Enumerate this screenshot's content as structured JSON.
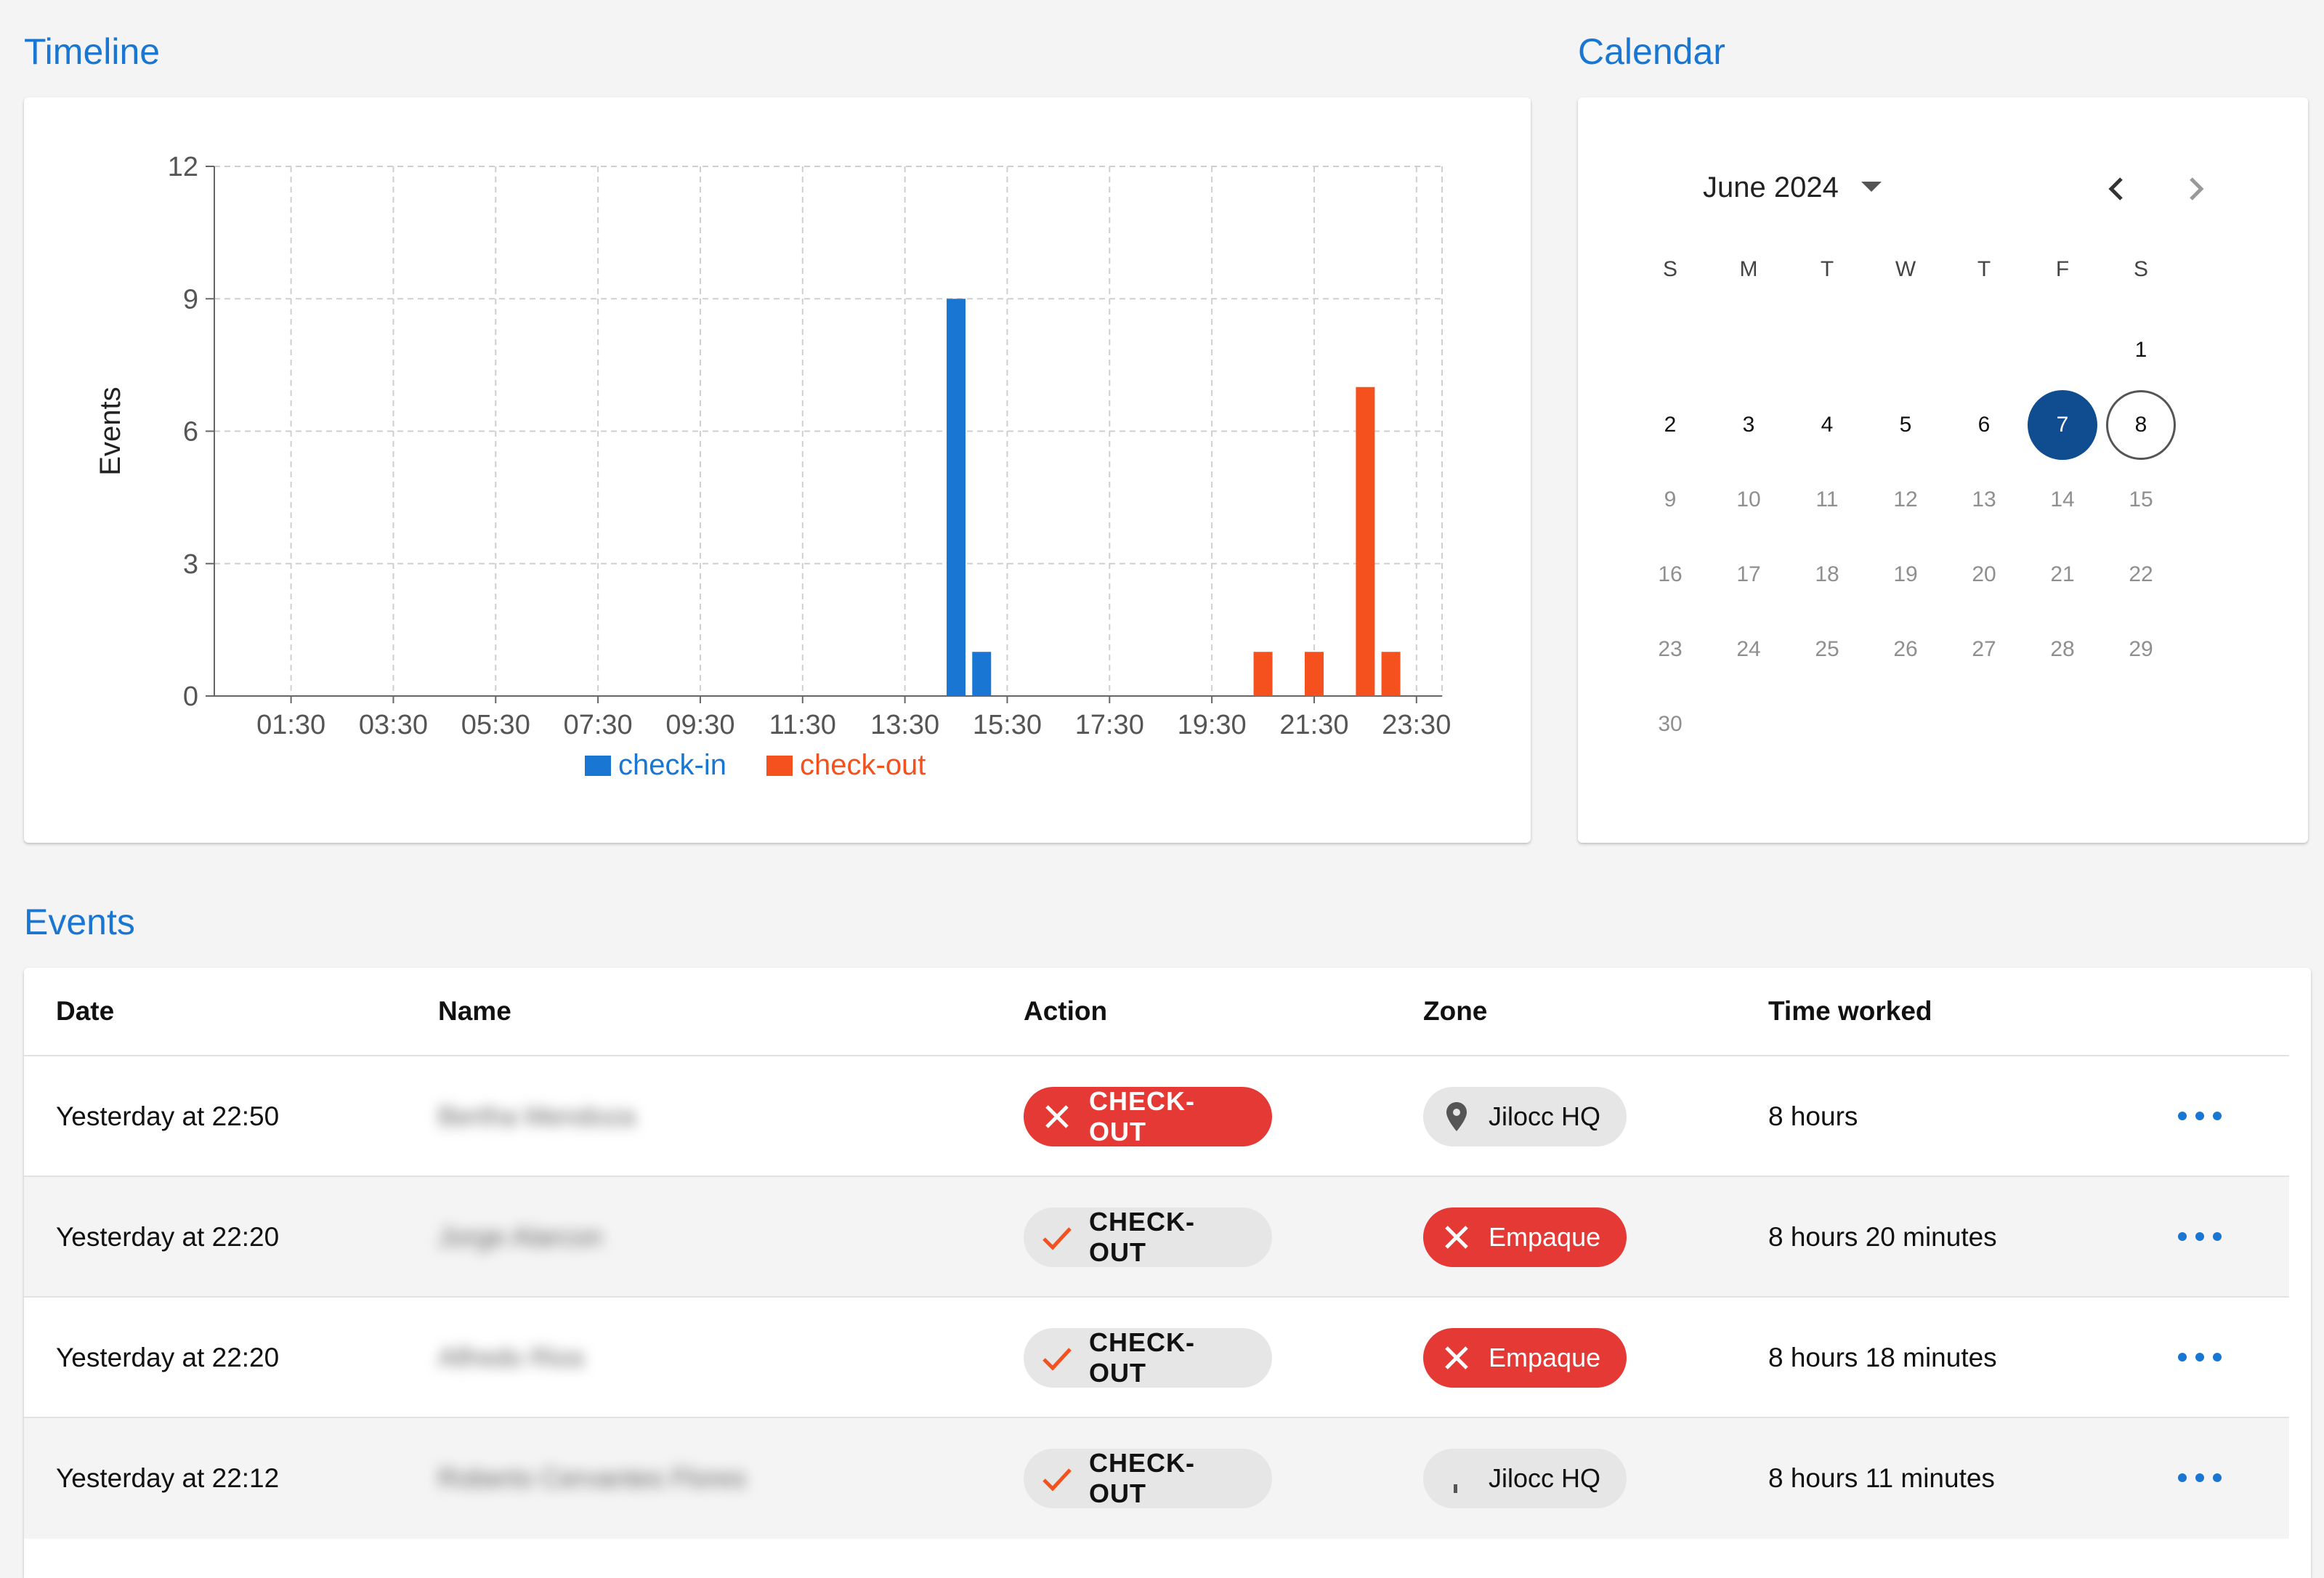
{
  "timeline": {
    "title": "Timeline",
    "chart_data": {
      "type": "bar",
      "ylabel": "Events",
      "xlabel": "",
      "ylim": [
        0,
        12
      ],
      "yticks": [
        0,
        3,
        6,
        9,
        12
      ],
      "xlim": [
        "00:00",
        "24:00"
      ],
      "xticks": [
        "01:30",
        "03:30",
        "05:30",
        "07:30",
        "09:30",
        "11:30",
        "13:30",
        "15:30",
        "17:30",
        "19:30",
        "21:30",
        "23:30"
      ],
      "grid": true,
      "legend_position": "bottom",
      "series": [
        {
          "name": "check-in",
          "color": "#1976d2",
          "bars": [
            {
              "x": "14:30",
              "value": 9
            },
            {
              "x": "15:00",
              "value": 1
            }
          ]
        },
        {
          "name": "check-out",
          "color": "#f4511e",
          "bars": [
            {
              "x": "20:30",
              "value": 1
            },
            {
              "x": "21:30",
              "value": 1
            },
            {
              "x": "22:30",
              "value": 7
            },
            {
              "x": "23:00",
              "value": 1
            }
          ]
        }
      ]
    }
  },
  "calendar": {
    "title": "Calendar",
    "month_label": "June 2024",
    "icons": {
      "dropdown": "caret-down-icon",
      "prev": "chevron-left-icon",
      "next": "chevron-right-icon"
    },
    "weekdays": [
      "S",
      "M",
      "T",
      "W",
      "T",
      "F",
      "S"
    ],
    "first_weekday_index": 6,
    "days": [
      "1",
      "2",
      "3",
      "4",
      "5",
      "6",
      "7",
      "8",
      "9",
      "10",
      "11",
      "12",
      "13",
      "14",
      "15",
      "16",
      "17",
      "18",
      "19",
      "20",
      "21",
      "22",
      "23",
      "24",
      "25",
      "26",
      "27",
      "28",
      "29",
      "30"
    ],
    "selected_day": "7",
    "today": "8",
    "last_active_day": "8"
  },
  "events": {
    "title": "Events",
    "columns": [
      "Date",
      "Name",
      "Action",
      "Zone",
      "Time worked"
    ],
    "rows": [
      {
        "date": "Yesterday at 22:50",
        "name": "Bertha Mendoza",
        "action": {
          "label": "CHECK-OUT",
          "style": "red",
          "icon": "close-icon"
        },
        "zone": {
          "label": "Jilocc HQ",
          "style": "grey",
          "icon": "location-pin-icon"
        },
        "time": "8 hours"
      },
      {
        "date": "Yesterday at 22:20",
        "name": "Jorge Alarcon",
        "action": {
          "label": "CHECK-OUT",
          "style": "grey",
          "icon": "check-icon"
        },
        "zone": {
          "label": "Empaque",
          "style": "red",
          "icon": "close-icon"
        },
        "time": "8 hours 20 minutes"
      },
      {
        "date": "Yesterday at 22:20",
        "name": "Alfredo Rios",
        "action": {
          "label": "CHECK-OUT",
          "style": "grey",
          "icon": "check-icon"
        },
        "zone": {
          "label": "Empaque",
          "style": "red",
          "icon": "close-icon"
        },
        "time": "8 hours 18 minutes"
      },
      {
        "date": "Yesterday at 22:12",
        "name": "Roberto Cervantes Flores",
        "action": {
          "label": "CHECK-OUT",
          "style": "grey",
          "icon": "check-icon"
        },
        "zone": {
          "label": "Jilocc HQ",
          "style": "grey",
          "icon": "pin-dot-icon"
        },
        "time": "8 hours 11 minutes"
      }
    ],
    "row_menu_icon": "more-horizontal-icon"
  }
}
